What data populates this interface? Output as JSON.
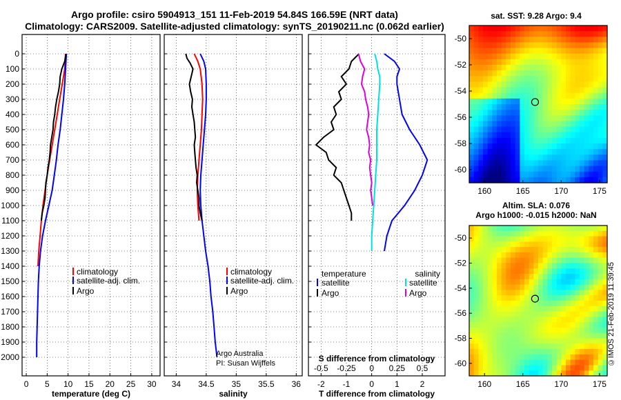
{
  "header": {
    "title_line1": "Argo profile: csiro 5904913_151 11-Feb-2019 54.84S 166.59E (NRT data)",
    "title_line2": "Climatology: CARS2009. Satellite-adjusted climatology: synTS_20190211.nc (0.062d earlier)"
  },
  "side_label": "©IMOS 21-Feb-2019 11:39:45",
  "chart_data": [
    {
      "id": "temperature",
      "type": "line",
      "xlabel": "temperature (deg C)",
      "ylabel": "",
      "xlim": [
        -1,
        32
      ],
      "ylim": [
        2050,
        0
      ],
      "xticks": [
        0,
        5,
        10,
        15,
        20,
        25,
        30
      ],
      "yticks": [
        0,
        100,
        200,
        300,
        400,
        500,
        600,
        700,
        800,
        900,
        1000,
        1100,
        1200,
        1300,
        1400,
        1500,
        1600,
        1700,
        1800,
        1900,
        2000
      ],
      "ytick_labels": [
        "0",
        "100",
        "200",
        "300",
        "400",
        "500",
        "600",
        "700",
        "800",
        "900",
        "1000",
        "1100",
        "1200",
        "1300",
        "1400",
        "1500",
        "1600",
        "1700",
        "1800",
        "1900",
        "2000"
      ],
      "legend": {
        "position": "lower-right",
        "entries": [
          "climatology",
          "satellite-adj. clim.",
          "Argo"
        ]
      },
      "series": [
        {
          "name": "climatology",
          "color": "#ff0000",
          "depth": [
            0,
            100,
            200,
            300,
            400,
            500,
            600,
            700,
            800,
            900,
            1000,
            1100,
            1200,
            1300,
            1400
          ],
          "values": [
            9.4,
            9.2,
            8.6,
            8.0,
            7.4,
            6.8,
            6.2,
            5.6,
            5.0,
            4.5,
            4.0,
            3.6,
            3.3,
            3.0,
            2.8
          ]
        },
        {
          "name": "satellite-adj. clim.",
          "color": "#0000ff",
          "depth": [
            0,
            100,
            200,
            300,
            400,
            500,
            600,
            700,
            800,
            900,
            1000,
            1100,
            1200,
            1300,
            1400,
            1500,
            1600,
            1700,
            1800,
            1900,
            2000
          ],
          "values": [
            9.6,
            9.4,
            9.2,
            8.9,
            8.5,
            8.1,
            7.6,
            7.2,
            6.7,
            6.2,
            5.4,
            4.6,
            3.9,
            3.4,
            3.1,
            2.9,
            2.8,
            2.7,
            2.6,
            2.5,
            2.5
          ]
        },
        {
          "name": "Argo",
          "color": "#000000",
          "depth": [
            0,
            50,
            100,
            150,
            200,
            250,
            300,
            350,
            400,
            450,
            500,
            550,
            600,
            650,
            700,
            750,
            800,
            850,
            900,
            950,
            1000,
            1050,
            1100
          ],
          "values": [
            9.5,
            9.2,
            8.5,
            8.1,
            8.0,
            7.7,
            7.3,
            7.0,
            6.8,
            6.5,
            6.4,
            6.1,
            5.8,
            5.7,
            5.5,
            5.2,
            5.0,
            4.7,
            4.6,
            4.5,
            4.2,
            3.8,
            3.6
          ]
        }
      ]
    },
    {
      "id": "salinity",
      "type": "line",
      "xlabel": "salinity",
      "ylabel": "",
      "xlim": [
        33.8,
        36.1
      ],
      "ylim": [
        2050,
        0
      ],
      "xticks": [
        34,
        34.5,
        35,
        35.5,
        36
      ],
      "legend": {
        "position": "lower-right",
        "entries": [
          "climatology",
          "satellite-adj. clim.",
          "Argo"
        ]
      },
      "annotation": [
        "Argo Australia",
        "PI: Susan Wijffels"
      ],
      "series": [
        {
          "name": "climatology",
          "color": "#ff0000",
          "depth": [
            0,
            50,
            100,
            200,
            300,
            400,
            500,
            600,
            700,
            800,
            900,
            1000,
            1100
          ],
          "values": [
            34.3,
            34.36,
            34.4,
            34.43,
            34.44,
            34.43,
            34.42,
            34.4,
            34.38,
            34.36,
            34.35,
            34.36,
            34.38
          ]
        },
        {
          "name": "satellite-adj. clim.",
          "color": "#0000ff",
          "depth": [
            0,
            50,
            100,
            200,
            300,
            400,
            500,
            600,
            700,
            800,
            900,
            1000,
            1100,
            1200,
            1300,
            1400,
            1500,
            1600,
            1700,
            1800,
            1900,
            2000
          ],
          "values": [
            34.4,
            34.46,
            34.49,
            34.5,
            34.5,
            34.49,
            34.47,
            34.45,
            34.43,
            34.41,
            34.4,
            34.41,
            34.43,
            34.46,
            34.49,
            34.53,
            34.56,
            34.58,
            34.61,
            34.63,
            34.65,
            34.68
          ]
        },
        {
          "name": "Argo",
          "color": "#000000",
          "depth": [
            0,
            30,
            60,
            100,
            150,
            200,
            250,
            300,
            350,
            400,
            450,
            500,
            550,
            600,
            650,
            700,
            750,
            800,
            850,
            900,
            950,
            1000,
            1050,
            1100
          ],
          "values": [
            34.16,
            34.18,
            34.23,
            34.28,
            34.25,
            34.22,
            34.24,
            34.27,
            34.26,
            34.28,
            34.3,
            34.31,
            34.32,
            34.3,
            34.31,
            34.32,
            34.33,
            34.35,
            34.34,
            34.36,
            34.38,
            34.38,
            34.4,
            34.43
          ]
        }
      ]
    },
    {
      "id": "difference",
      "type": "line",
      "xlabel": "T difference from climatology",
      "x2label": "S difference from climatology",
      "xlim": [
        -2.5,
        2.9
      ],
      "x2lim": [
        -0.625,
        0.725
      ],
      "ylim": [
        2050,
        0
      ],
      "xticks": [
        -2,
        -1,
        0,
        1,
        2
      ],
      "x2ticks": [
        -0.5,
        -0.25,
        0,
        0.25,
        0.5
      ],
      "x2tick_labels": [
        "-0.5",
        "-0.25",
        "0",
        "0.25",
        "0.5"
      ],
      "legend": {
        "position": "lower",
        "temperature_header": "temperature",
        "salinity_header": "salinity",
        "entries": [
          "satellite",
          "Argo",
          "satellite",
          "Argo"
        ]
      },
      "series": [
        {
          "name": "T satellite",
          "color": "#0000ff",
          "axis": "T",
          "depth": [
            0,
            50,
            100,
            150,
            200,
            300,
            400,
            500,
            600,
            700,
            800,
            900,
            1000,
            1100,
            1200,
            1300
          ],
          "values": [
            0.5,
            0.9,
            1.1,
            1.0,
            1.0,
            1.1,
            1.2,
            1.5,
            1.9,
            2.2,
            2.0,
            1.7,
            1.3,
            0.8,
            0.6,
            0.5
          ]
        },
        {
          "name": "T Argo",
          "color": "#000000",
          "axis": "T",
          "depth": [
            0,
            50,
            100,
            150,
            200,
            250,
            300,
            350,
            400,
            450,
            500,
            550,
            600,
            650,
            700,
            750,
            800,
            850,
            900,
            950,
            1000,
            1050,
            1100
          ],
          "values": [
            -0.5,
            -0.8,
            -0.9,
            -1.2,
            -1.0,
            -1.3,
            -1.2,
            -1.5,
            -1.4,
            -1.6,
            -1.5,
            -1.9,
            -2.2,
            -1.8,
            -1.7,
            -1.4,
            -1.5,
            -1.2,
            -1.1,
            -1.0,
            -0.9,
            -0.8,
            -0.8
          ]
        },
        {
          "name": "S satellite",
          "color": "#00e0e0",
          "axis": "S",
          "depth": [
            0,
            50,
            100,
            150,
            200,
            300,
            400,
            500,
            600,
            700,
            800,
            900,
            1000,
            1100,
            1200,
            1300
          ],
          "values": [
            0.03,
            0.05,
            0.06,
            0.08,
            0.08,
            0.07,
            0.06,
            0.05,
            0.05,
            0.05,
            0.04,
            0.03,
            0.02,
            0.01,
            0.0,
            0.0
          ]
        },
        {
          "name": "S Argo",
          "color": "#dd00dd",
          "axis": "S",
          "depth": [
            0,
            50,
            100,
            150,
            200,
            250,
            300,
            350,
            400,
            450,
            500,
            550,
            600,
            650,
            700,
            750,
            800,
            850,
            900,
            950,
            1000
          ],
          "values": [
            -0.13,
            -0.11,
            -0.07,
            -0.09,
            -0.1,
            -0.07,
            -0.06,
            -0.04,
            -0.03,
            -0.04,
            -0.05,
            -0.03,
            -0.02,
            -0.03,
            -0.01,
            -0.02,
            -0.01,
            0.0,
            -0.01,
            0.0,
            0.01
          ]
        }
      ]
    },
    {
      "id": "sst-map",
      "type": "heatmap",
      "title": "sat. SST: 9.28 Argo: 9.4",
      "xlim": [
        158,
        176
      ],
      "ylim": [
        -61,
        -49
      ],
      "xticks": [
        160,
        165,
        170,
        175
      ],
      "yticks": [
        -50,
        -52,
        -54,
        -56,
        -58,
        -60
      ],
      "marker": {
        "lon": 166.59,
        "lat": -54.84
      },
      "colormap": "jet"
    },
    {
      "id": "sla-map",
      "type": "heatmap",
      "title": "Altim. SLA: 0.076",
      "subtitle": "Argo h1000: -0.015 h2000: NaN",
      "xlim": [
        158,
        176
      ],
      "ylim": [
        -61,
        -49
      ],
      "xticks": [
        160,
        165,
        170,
        175
      ],
      "yticks": [
        -50,
        -52,
        -54,
        -56,
        -58,
        -60
      ],
      "marker": {
        "lon": 166.59,
        "lat": -54.84
      },
      "colormap": "jet"
    }
  ]
}
